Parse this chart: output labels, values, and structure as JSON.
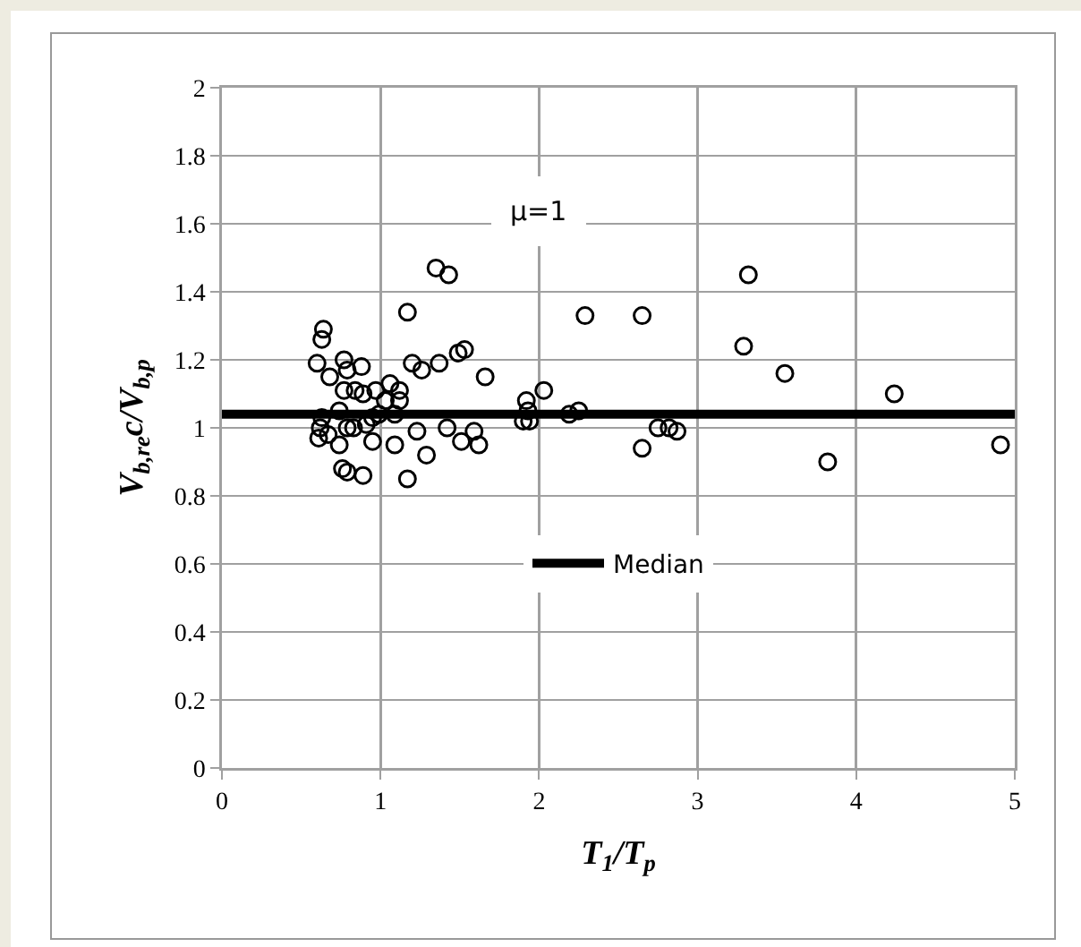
{
  "chart_data": {
    "type": "scatter",
    "xlabel": "T$_{1}$/T$_{p}$",
    "ylabel": "V$_{b,re}$c/V$_{b,p}$",
    "annotations": [
      "μ=1"
    ],
    "xlim": [
      0,
      5
    ],
    "xticks": [
      0,
      1,
      2,
      3,
      4,
      5
    ],
    "ylim": [
      0,
      2
    ],
    "yticks": [
      0,
      0.2,
      0.4,
      0.6,
      0.8,
      1,
      1.2,
      1.4,
      1.6,
      1.8,
      2
    ],
    "grid": true,
    "legend": "center",
    "marker": "circle",
    "series": [
      {
        "color": "#000000",
        "x": [
          0.6,
          0.64,
          0.63,
          0.68,
          0.77,
          0.79,
          0.88,
          0.77,
          0.84,
          0.89,
          0.97,
          1.06,
          1.12,
          1.12,
          1.03,
          1.09,
          1.17,
          1.2,
          1.26,
          1.35,
          1.43,
          1.37,
          1.49,
          1.53,
          1.66,
          0.63,
          0.62,
          0.61,
          0.67,
          0.74,
          0.74,
          0.79,
          0.83,
          0.76,
          0.79,
          0.89,
          0.91,
          0.95,
          0.95,
          0.99,
          1.09,
          1.17,
          1.23,
          1.29,
          1.42,
          1.51,
          1.59,
          1.62,
          1.92,
          1.9,
          1.94,
          1.93,
          2.03,
          2.19,
          2.25,
          2.29,
          2.65,
          2.65,
          2.75,
          2.82,
          2.87,
          3.29,
          3.32,
          3.55,
          3.82,
          4.24,
          4.91
        ],
        "values": [
          1.19,
          1.29,
          1.26,
          1.15,
          1.2,
          1.17,
          1.18,
          1.11,
          1.11,
          1.1,
          1.11,
          1.13,
          1.11,
          1.08,
          1.08,
          1.04,
          1.34,
          1.19,
          1.17,
          1.47,
          1.45,
          1.19,
          1.22,
          1.23,
          1.15,
          1.03,
          1.0,
          0.97,
          0.98,
          1.05,
          0.95,
          1.0,
          1.0,
          0.88,
          0.87,
          0.86,
          1.01,
          1.03,
          0.96,
          1.04,
          0.95,
          0.85,
          0.99,
          0.92,
          1.0,
          0.96,
          0.99,
          0.95,
          1.08,
          1.02,
          1.02,
          1.05,
          1.11,
          1.04,
          1.05,
          1.33,
          1.33,
          0.94,
          1.0,
          1.0,
          0.99,
          1.24,
          1.45,
          1.16,
          0.9,
          1.1,
          0.95
        ]
      },
      {
        "type": "line",
        "name": "Median",
        "color": "#000000",
        "marker": "none",
        "line_style": "solid",
        "x": [
          0,
          5
        ],
        "values": [
          1.04,
          1.04
        ]
      }
    ]
  }
}
